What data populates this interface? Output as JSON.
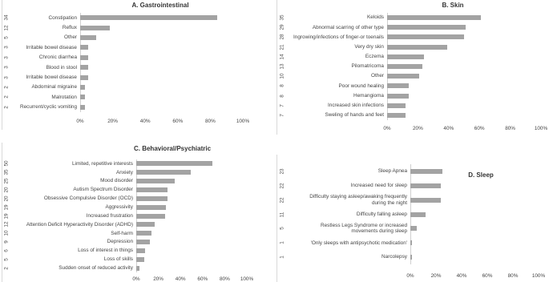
{
  "chart_data": [
    {
      "type": "bar",
      "title": "A. Gastrointestinal",
      "categories": [
        "Constipation",
        "Reflux",
        "Other",
        "Irritable bowel disease",
        "Chronic diarrhea",
        "Blood in stool",
        "Irritable bowel disease",
        "Abdominal migraine",
        "Malrotation",
        "Recurrent/cyclic vomiting"
      ],
      "counts": [
        34,
        12,
        5,
        3,
        3,
        3,
        3,
        2,
        2,
        2
      ],
      "values": [
        84,
        18,
        10,
        5,
        5,
        5,
        5,
        3,
        3,
        3
      ],
      "color": "#a3a3a3",
      "xlim": [
        0,
        100
      ],
      "xticks": [
        {
          "value": 0,
          "label": "0%"
        },
        {
          "value": 20,
          "label": "20%"
        },
        {
          "value": 40,
          "label": "40%"
        },
        {
          "value": 60,
          "label": "60%"
        },
        {
          "value": 80,
          "label": "80%"
        },
        {
          "value": 100,
          "label": "100%"
        }
      ]
    },
    {
      "type": "bar",
      "title": "B. Skin",
      "categories": [
        "Keloids",
        "Abnormal scarring of other type",
        "Ingrowing/infections of finger-or toenails",
        "Very dry skin",
        "Eczema",
        "Pilomatricoma",
        "Other",
        "Poor wound healing",
        "Hemangioma",
        "Increased skin infections",
        "Sweling of hands and feet"
      ],
      "counts": [
        35,
        29,
        28,
        21,
        14,
        13,
        10,
        8,
        8,
        7,
        7
      ],
      "values": [
        61,
        51,
        50,
        39,
        24,
        23,
        21,
        14,
        14,
        12,
        12
      ],
      "color": "#a3a3a3",
      "xlim": [
        0,
        100
      ],
      "xticks": [
        {
          "value": 0,
          "label": "0%"
        },
        {
          "value": 20,
          "label": "20%"
        },
        {
          "value": 40,
          "label": "40%"
        },
        {
          "value": 60,
          "label": "60%"
        },
        {
          "value": 80,
          "label": "80%"
        },
        {
          "value": 100,
          "label": "100%"
        }
      ]
    },
    {
      "type": "bar",
      "title": "C. Behavioral/Psychiatric",
      "categories": [
        "Limited, repetitive interests",
        "Anxiety",
        "Mood disorder",
        "Autism Spectrum Disorder",
        "Obsessive Compulsive Disorder (OCD)",
        "Aggressivity",
        "Increased frustration",
        "Attention Deficit Hyperactivity Disorder (ADHD)",
        "Self-harm",
        "Depression",
        "Loss of interest in things",
        "Loss of skills",
        "Sudden onset of reduced activity"
      ],
      "counts": [
        50,
        35,
        25,
        20,
        20,
        19,
        19,
        12,
        10,
        9,
        6,
        5,
        2
      ],
      "values": [
        69,
        49,
        35,
        28,
        28,
        27,
        26,
        17,
        14,
        12,
        8,
        7,
        3
      ],
      "color": "#a3a3a3",
      "xlim": [
        0,
        100
      ],
      "xticks": [
        {
          "value": 0,
          "label": "0%"
        },
        {
          "value": 20,
          "label": "20%"
        },
        {
          "value": 40,
          "label": "40%"
        },
        {
          "value": 60,
          "label": "60%"
        },
        {
          "value": 80,
          "label": "80%"
        },
        {
          "value": 100,
          "label": "100%"
        }
      ]
    },
    {
      "type": "bar",
      "title": "D. Sleep",
      "categories": [
        "Sleep Apnea",
        "Increased need for sleep",
        "Difficulty staying asleep/awaking frequently during the night",
        "Difficulty falling asleep",
        "Restless Legs Syndrome or increased movements during sleep",
        "'Only sleeps with antipsychotic medication'",
        "Narcolepsy"
      ],
      "counts": [
        23,
        22,
        22,
        11,
        5,
        1,
        1
      ],
      "values": [
        25,
        24,
        24,
        12,
        5,
        1,
        1
      ],
      "color": "#a3a3a3",
      "xlim": [
        0,
        100
      ],
      "xticks": [
        {
          "value": 0,
          "label": "0%"
        },
        {
          "value": 20,
          "label": "20%"
        },
        {
          "value": 40,
          "label": "40%"
        },
        {
          "value": 60,
          "label": "60%"
        },
        {
          "value": 80,
          "label": "80%"
        },
        {
          "value": 100,
          "label": "100%"
        }
      ]
    }
  ]
}
